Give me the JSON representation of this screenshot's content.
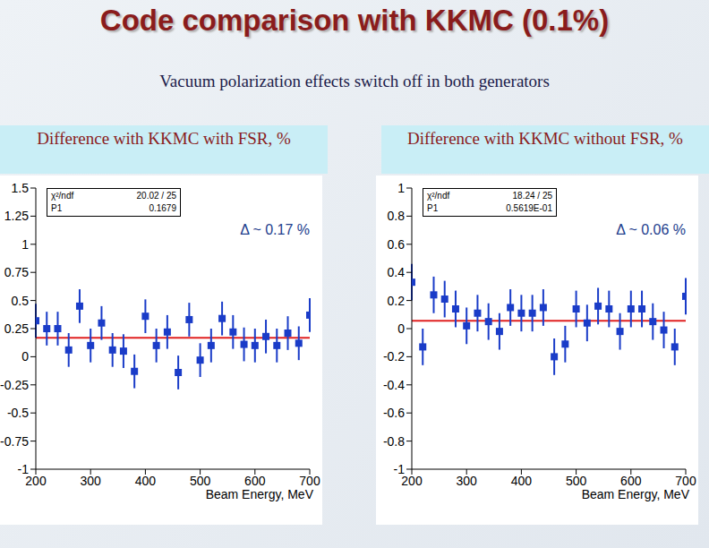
{
  "title": "Code comparison with KKMC (0.1%)",
  "subtitle": "Vacuum polarization effects switch off in both generators",
  "chart_data": [
    {
      "type": "scatter",
      "title": "Difference with KKMC with FSR, %",
      "xlabel": "Beam Energy, MeV",
      "x": [
        200,
        220,
        240,
        260,
        280,
        300,
        320,
        340,
        360,
        380,
        400,
        420,
        440,
        460,
        480,
        500,
        520,
        540,
        560,
        580,
        600,
        620,
        640,
        660,
        680,
        700
      ],
      "values": [
        0.32,
        0.25,
        0.25,
        0.06,
        0.45,
        0.1,
        0.3,
        0.06,
        0.05,
        -0.13,
        0.36,
        0.1,
        0.22,
        -0.14,
        0.33,
        -0.03,
        0.1,
        0.34,
        0.22,
        0.11,
        0.1,
        0.18,
        0.1,
        0.21,
        0.12,
        0.37
      ],
      "errors": [
        0.15,
        0.15,
        0.15,
        0.15,
        0.15,
        0.15,
        0.15,
        0.15,
        0.15,
        0.15,
        0.15,
        0.15,
        0.15,
        0.15,
        0.15,
        0.15,
        0.15,
        0.15,
        0.15,
        0.15,
        0.15,
        0.15,
        0.15,
        0.15,
        0.15,
        0.15
      ],
      "xlim": [
        200,
        700
      ],
      "xticks": [
        200,
        300,
        400,
        500,
        600,
        700
      ],
      "ylim": [
        -1,
        1.5
      ],
      "yticks": [
        -1,
        -0.75,
        -0.5,
        -0.25,
        0,
        0.25,
        0.5,
        0.75,
        1,
        1.25,
        1.5
      ],
      "color": "#1a3cc8",
      "fit_color": "#e02020",
      "chi2_label": "χ²/ndf",
      "chi2": "20.02 / 25",
      "fit_label": "P1",
      "fit": {
        "value": 0.1679,
        "label": "0.1679"
      },
      "annotation": "Δ ~ 0.17 %"
    },
    {
      "type": "scatter",
      "title": "Difference with KKMC without FSR, %",
      "xlabel": "Beam Energy, MeV",
      "x": [
        200,
        220,
        240,
        260,
        280,
        300,
        320,
        340,
        360,
        380,
        400,
        420,
        440,
        460,
        480,
        500,
        520,
        540,
        560,
        580,
        600,
        620,
        640,
        660,
        680,
        700
      ],
      "values": [
        0.33,
        -0.13,
        0.24,
        0.21,
        0.14,
        0.02,
        0.11,
        0.05,
        -0.02,
        0.15,
        0.11,
        0.11,
        0.15,
        -0.2,
        -0.11,
        0.14,
        0.04,
        0.16,
        0.14,
        -0.02,
        0.14,
        0.14,
        0.05,
        -0.01,
        -0.13,
        0.23
      ],
      "errors": [
        0.13,
        0.13,
        0.13,
        0.13,
        0.13,
        0.13,
        0.13,
        0.13,
        0.13,
        0.13,
        0.13,
        0.13,
        0.13,
        0.13,
        0.13,
        0.13,
        0.13,
        0.13,
        0.13,
        0.13,
        0.13,
        0.13,
        0.13,
        0.13,
        0.13,
        0.13
      ],
      "xlim": [
        200,
        700
      ],
      "xticks": [
        200,
        300,
        400,
        500,
        600,
        700
      ],
      "ylim": [
        -1,
        1
      ],
      "yticks": [
        -1,
        -0.8,
        -0.6,
        -0.4,
        -0.2,
        0,
        0.2,
        0.4,
        0.6,
        0.8,
        1
      ],
      "color": "#1a3cc8",
      "fit_color": "#e02020",
      "chi2_label": "χ²/ndf",
      "chi2": "18.24 / 25",
      "fit_label": "P1",
      "fit": {
        "value": 0.05619,
        "label": "0.5619E-01"
      },
      "annotation": "Δ ~ 0.06 %"
    }
  ]
}
